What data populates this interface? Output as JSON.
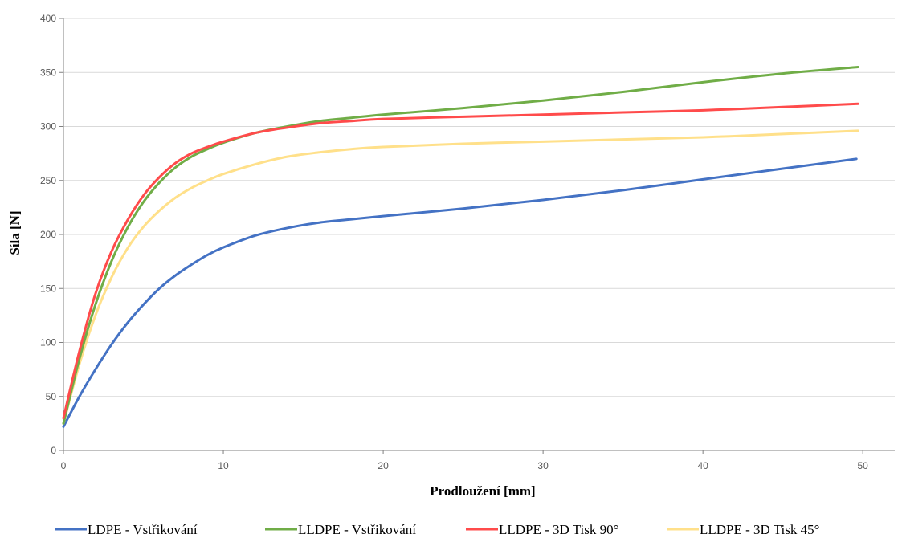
{
  "chart_data": {
    "type": "line",
    "title": "",
    "xlabel": "Prodloužení  [mm]",
    "ylabel": "Síla [N]",
    "xlim": [
      0,
      52
    ],
    "ylim": [
      0,
      400
    ],
    "xticks": [
      0,
      10,
      20,
      30,
      40,
      50
    ],
    "yticks": [
      0,
      50,
      100,
      150,
      200,
      250,
      300,
      350,
      400
    ],
    "grid": "horizontal",
    "legend_position": "bottom",
    "series": [
      {
        "name": "LDPE - Vstřikování",
        "color": "#4472C4",
        "x": [
          0,
          1,
          2,
          3,
          4,
          5,
          6,
          7,
          8,
          9,
          10,
          12,
          14,
          16,
          18,
          20,
          25,
          30,
          35,
          40,
          45,
          49.6
        ],
        "y": [
          22,
          50,
          75,
          98,
          118,
          135,
          150,
          162,
          172,
          181,
          188,
          199,
          206,
          211,
          214,
          217,
          224,
          232,
          241,
          251,
          261,
          270
        ]
      },
      {
        "name": "LLDPE - Vstřikování",
        "color": "#70AD47",
        "x": [
          0,
          1,
          2,
          3,
          4,
          5,
          6,
          7,
          8,
          9,
          10,
          12,
          14,
          16,
          18,
          20,
          25,
          30,
          35,
          40,
          45,
          49.7
        ],
        "y": [
          25,
          85,
          135,
          175,
          206,
          230,
          248,
          262,
          272,
          279,
          285,
          294,
          300,
          305,
          308,
          311,
          317,
          324,
          332,
          341,
          349,
          355
        ]
      },
      {
        "name": "LLDPE - 3D Tisk 90°",
        "color": "#FF4B4B",
        "x": [
          0,
          1,
          2,
          3,
          4,
          5,
          6,
          7,
          8,
          9,
          10,
          12,
          14,
          16,
          18,
          20,
          25,
          30,
          35,
          40,
          45,
          49.7
        ],
        "y": [
          30,
          92,
          145,
          184,
          213,
          236,
          253,
          266,
          275,
          281,
          286,
          294,
          299,
          303,
          305,
          307,
          309,
          311,
          313,
          315,
          318,
          321
        ]
      },
      {
        "name": "LLDPE - 3D Tisk 45°",
        "color": "#FFE08A",
        "x": [
          0,
          1,
          2,
          3,
          4,
          5,
          6,
          7,
          8,
          9,
          10,
          12,
          14,
          16,
          18,
          20,
          25,
          30,
          35,
          40,
          45,
          49.7
        ],
        "y": [
          25,
          80,
          125,
          160,
          187,
          207,
          222,
          234,
          243,
          250,
          256,
          265,
          272,
          276,
          279,
          281,
          284,
          286,
          288,
          290,
          293,
          296
        ]
      }
    ]
  }
}
